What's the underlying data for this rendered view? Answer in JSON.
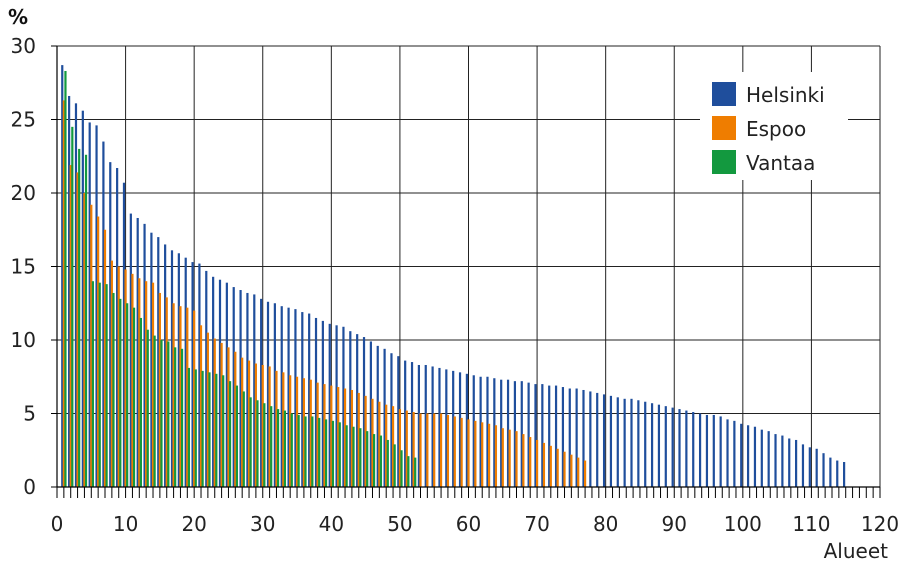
{
  "chart_data": {
    "type": "bar",
    "ylabel": "%",
    "xlabel": "Alueet",
    "xlim": [
      0,
      120
    ],
    "ylim": [
      0,
      30
    ],
    "x_ticks": [
      0,
      10,
      20,
      30,
      40,
      50,
      60,
      70,
      80,
      90,
      100,
      110,
      120
    ],
    "y_ticks": [
      0,
      5,
      10,
      15,
      20,
      25,
      30
    ],
    "grid": true,
    "legend_position": "top-right",
    "series": [
      {
        "name": "Helsinki",
        "color": "#1f4e9c",
        "values": [
          28.7,
          26.6,
          26.1,
          25.6,
          24.8,
          24.6,
          23.5,
          22.1,
          21.7,
          20.7,
          18.6,
          18.3,
          17.9,
          17.3,
          17.0,
          16.5,
          16.1,
          15.9,
          15.6,
          15.3,
          15.2,
          14.7,
          14.3,
          14.1,
          13.9,
          13.6,
          13.4,
          13.2,
          13.1,
          12.8,
          12.6,
          12.5,
          12.3,
          12.2,
          12.1,
          11.9,
          11.8,
          11.5,
          11.3,
          11.1,
          11.0,
          10.9,
          10.6,
          10.4,
          10.2,
          9.9,
          9.6,
          9.4,
          9.1,
          8.9,
          8.6,
          8.5,
          8.3,
          8.3,
          8.2,
          8.1,
          8.0,
          7.9,
          7.8,
          7.7,
          7.6,
          7.5,
          7.5,
          7.4,
          7.3,
          7.3,
          7.2,
          7.2,
          7.1,
          7.0,
          7.0,
          6.9,
          6.9,
          6.8,
          6.7,
          6.7,
          6.6,
          6.5,
          6.4,
          6.3,
          6.2,
          6.1,
          6.0,
          6.0,
          5.9,
          5.8,
          5.7,
          5.6,
          5.5,
          5.4,
          5.3,
          5.2,
          5.1,
          5.0,
          4.9,
          4.9,
          4.8,
          4.6,
          4.5,
          4.3,
          4.2,
          4.1,
          3.9,
          3.8,
          3.6,
          3.5,
          3.3,
          3.2,
          2.9,
          2.7,
          2.6,
          2.3,
          2.0,
          1.8,
          1.7
        ]
      },
      {
        "name": "Espoo",
        "color": "#ef7d00",
        "values": [
          26.3,
          21.9,
          21.4,
          20.0,
          19.2,
          18.4,
          17.5,
          15.4,
          15.0,
          14.8,
          14.5,
          14.2,
          14.0,
          13.9,
          13.2,
          12.9,
          12.5,
          12.3,
          12.2,
          12.0,
          11.0,
          10.5,
          10.1,
          9.8,
          9.5,
          9.2,
          8.8,
          8.6,
          8.4,
          8.3,
          8.2,
          7.9,
          7.8,
          7.6,
          7.5,
          7.4,
          7.3,
          7.1,
          7.0,
          6.9,
          6.8,
          6.7,
          6.6,
          6.4,
          6.2,
          6.0,
          5.8,
          5.6,
          5.5,
          5.3,
          5.2,
          5.1,
          5.0,
          5.0,
          5.0,
          5.0,
          4.9,
          4.8,
          4.7,
          4.6,
          4.5,
          4.4,
          4.3,
          4.2,
          4.0,
          3.9,
          3.8,
          3.6,
          3.4,
          3.2,
          3.0,
          2.8,
          2.6,
          2.4,
          2.2,
          2.0,
          1.8
        ]
      },
      {
        "name": "Vantaa",
        "color": "#13993f",
        "values": [
          28.3,
          24.5,
          23.0,
          22.6,
          14.0,
          13.9,
          13.8,
          13.2,
          12.8,
          12.5,
          12.2,
          11.5,
          10.7,
          10.3,
          10.0,
          9.9,
          9.5,
          9.4,
          8.1,
          8.0,
          7.9,
          7.8,
          7.7,
          7.6,
          7.2,
          6.9,
          6.5,
          6.1,
          5.9,
          5.7,
          5.5,
          5.3,
          5.2,
          5.0,
          4.9,
          4.8,
          4.8,
          4.7,
          4.6,
          4.5,
          4.4,
          4.2,
          4.1,
          4.0,
          3.8,
          3.6,
          3.5,
          3.2,
          2.9,
          2.5,
          2.1,
          2.0
        ]
      }
    ]
  }
}
